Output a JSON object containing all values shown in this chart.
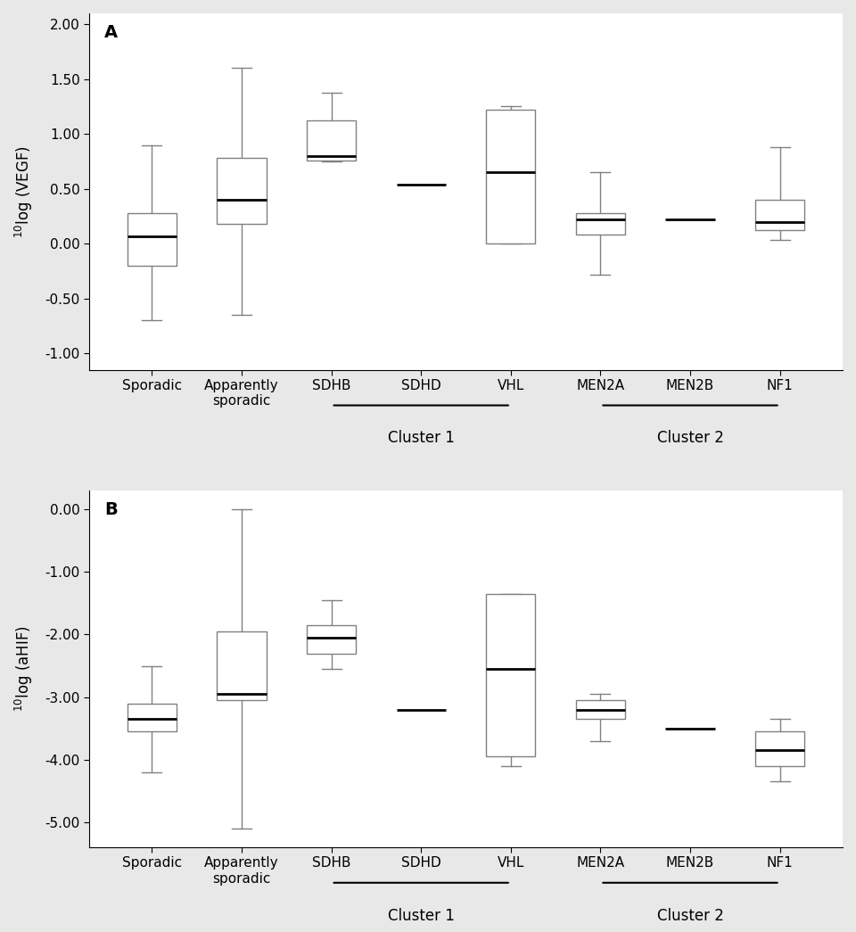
{
  "panel_A": {
    "ylabel": "$^{10}$log (VEGF)",
    "ylim": [
      -1.15,
      2.1
    ],
    "yticks": [
      -1.0,
      -0.5,
      0.0,
      0.5,
      1.0,
      1.5,
      2.0
    ],
    "label": "A",
    "boxes": [
      {
        "name": "Sporadic",
        "whislo": -0.7,
        "q1": -0.2,
        "med": 0.07,
        "q3": 0.28,
        "whishi": 0.9,
        "single": false
      },
      {
        "name": "Apparently\nsporadic",
        "whislo": -0.65,
        "q1": 0.18,
        "med": 0.4,
        "q3": 0.78,
        "whishi": 1.6,
        "single": false
      },
      {
        "name": "SDHB",
        "whislo": 0.75,
        "q1": 0.76,
        "med": 0.8,
        "q3": 1.12,
        "whishi": 1.38,
        "single": false
      },
      {
        "name": "SDHD",
        "whislo": 0.54,
        "q1": 0.54,
        "med": 0.54,
        "q3": 0.54,
        "whishi": 0.54,
        "single": true
      },
      {
        "name": "VHL",
        "whislo": 0.0,
        "q1": 0.0,
        "med": 0.65,
        "q3": 1.22,
        "whishi": 1.25,
        "single": false
      },
      {
        "name": "MEN2A",
        "whislo": -0.28,
        "q1": 0.08,
        "med": 0.22,
        "q3": 0.28,
        "whishi": 0.65,
        "single": false
      },
      {
        "name": "MEN2B",
        "whislo": 0.22,
        "q1": 0.22,
        "med": 0.22,
        "q3": 0.22,
        "whishi": 0.22,
        "single": true
      },
      {
        "name": "NF1",
        "whislo": 0.03,
        "q1": 0.12,
        "med": 0.2,
        "q3": 0.4,
        "whishi": 0.88,
        "single": false
      }
    ],
    "cluster1": {
      "start": 3,
      "end": 5,
      "label": "Cluster 1"
    },
    "cluster2": {
      "start": 6,
      "end": 8,
      "label": "Cluster 2"
    }
  },
  "panel_B": {
    "ylabel": "$^{10}$log (aHIF)",
    "ylim": [
      -5.4,
      0.3
    ],
    "yticks": [
      -5.0,
      -4.0,
      -3.0,
      -2.0,
      -1.0,
      0.0
    ],
    "label": "B",
    "boxes": [
      {
        "name": "Sporadic",
        "whislo": -4.2,
        "q1": -3.55,
        "med": -3.35,
        "q3": -3.1,
        "whishi": -2.5,
        "single": false
      },
      {
        "name": "Apparently\nsporadic",
        "whislo": -5.1,
        "q1": -3.05,
        "med": -2.95,
        "q3": -1.95,
        "whishi": 0.0,
        "single": false
      },
      {
        "name": "SDHB",
        "whislo": -2.55,
        "q1": -2.3,
        "med": -2.05,
        "q3": -1.85,
        "whishi": -1.45,
        "single": false
      },
      {
        "name": "SDHD",
        "whislo": -3.2,
        "q1": -3.2,
        "med": -3.2,
        "q3": -3.2,
        "whishi": -3.2,
        "single": true
      },
      {
        "name": "VHL",
        "whislo": -4.1,
        "q1": -3.95,
        "med": -2.55,
        "q3": -1.35,
        "whishi": -1.35,
        "single": false
      },
      {
        "name": "MEN2A",
        "whislo": -3.7,
        "q1": -3.35,
        "med": -3.2,
        "q3": -3.05,
        "whishi": -2.95,
        "single": false
      },
      {
        "name": "MEN2B",
        "whislo": -3.5,
        "q1": -3.5,
        "med": -3.5,
        "q3": -3.5,
        "whishi": -3.5,
        "single": true
      },
      {
        "name": "NF1",
        "whislo": -4.35,
        "q1": -4.1,
        "med": -3.85,
        "q3": -3.55,
        "whishi": -3.35,
        "single": false
      }
    ],
    "cluster1": {
      "start": 3,
      "end": 5,
      "label": "Cluster 1"
    },
    "cluster2": {
      "start": 6,
      "end": 8,
      "label": "Cluster 2"
    }
  },
  "box_width": 0.55,
  "box_color": "white",
  "median_color": "black",
  "whisker_color": "#808080",
  "cap_color": "#808080",
  "box_edge_color": "#808080",
  "bg_color": "#e8e8e8",
  "plot_bg_color": "white"
}
